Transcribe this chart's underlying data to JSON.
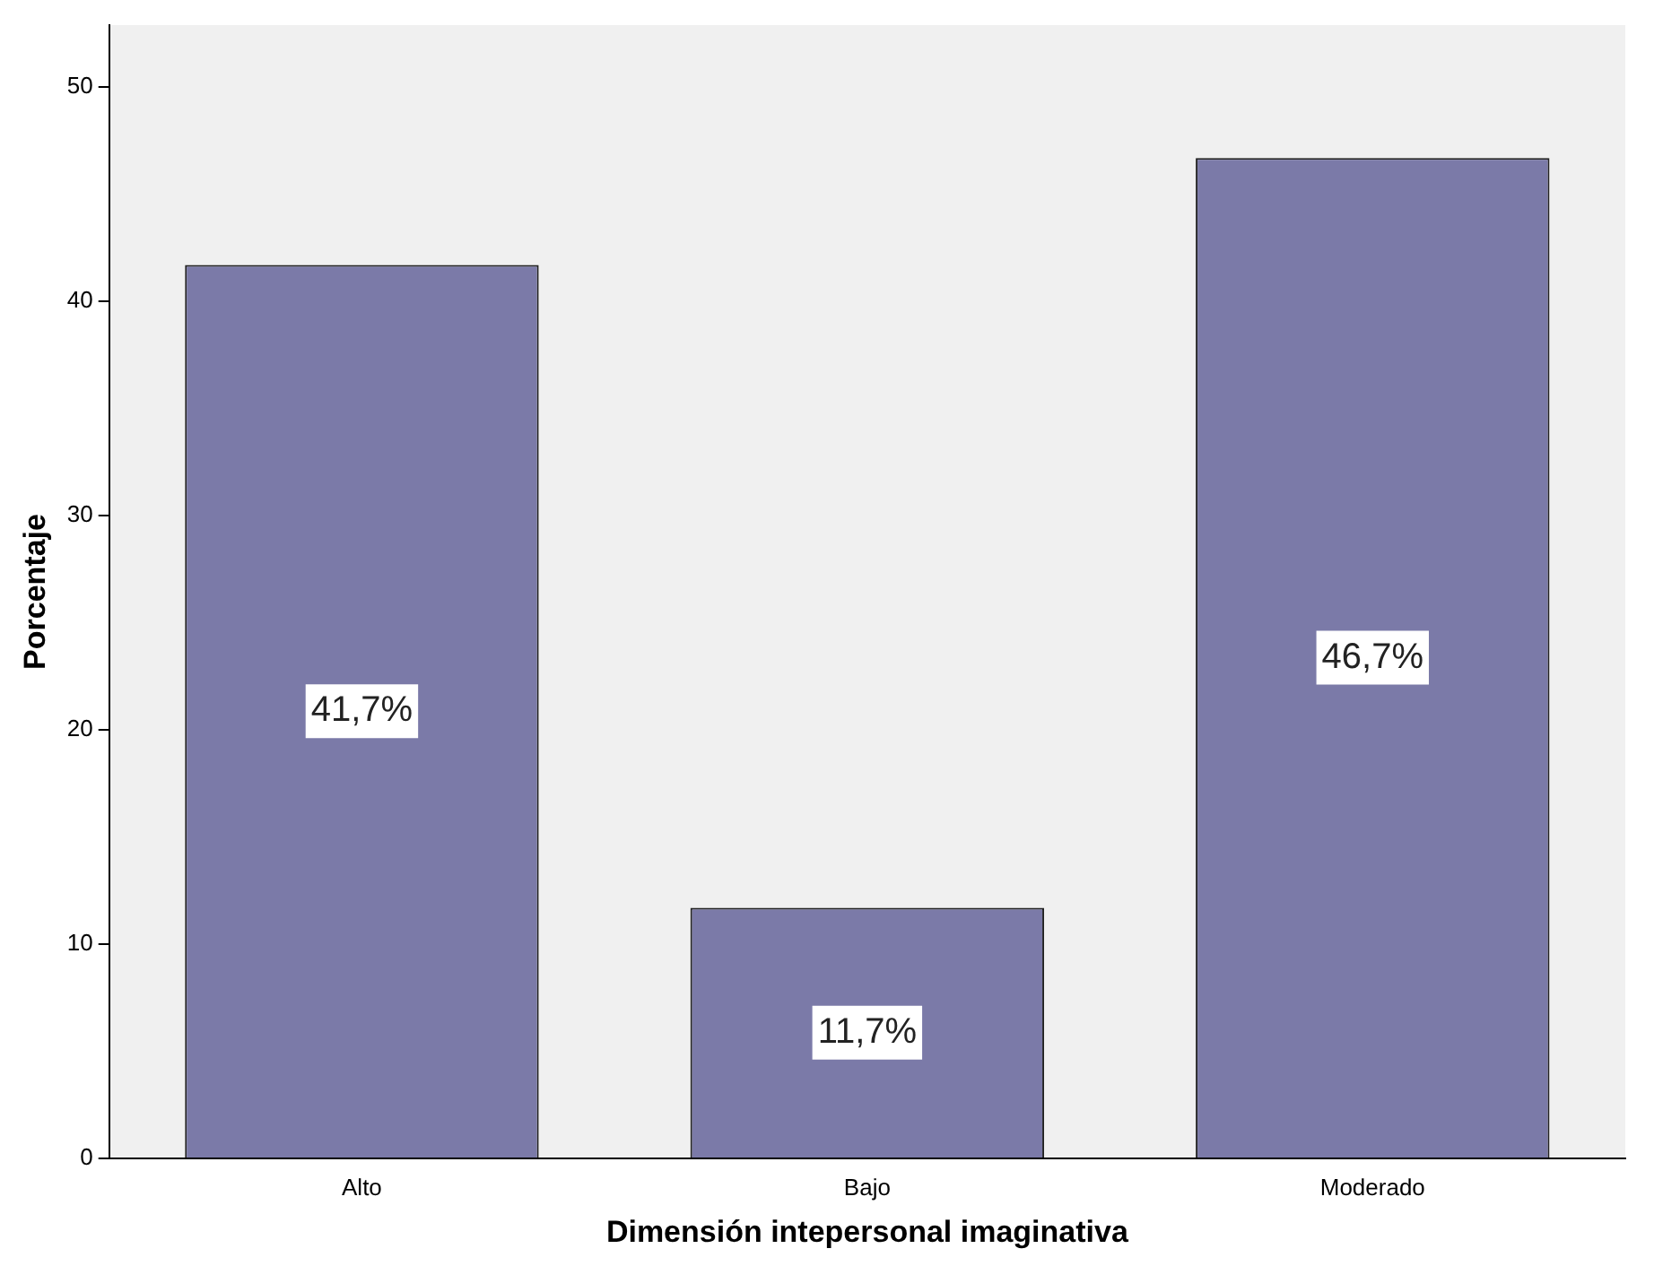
{
  "chart_data": {
    "type": "bar",
    "xlabel": "Dimensión intepersonal imaginativa",
    "ylabel": "Porcentaje",
    "categories": [
      "Alto",
      "Bajo",
      "Moderado"
    ],
    "values": [
      41.7,
      11.7,
      46.7
    ],
    "color": "#7b7aa8",
    "value_labels": [
      "41,7%",
      "11,7%",
      "46,7%"
    ],
    "ylim": [
      0,
      52.9
    ],
    "yticks": [
      0,
      10,
      20,
      30,
      40,
      50
    ],
    "grid": false,
    "legend": false
  }
}
